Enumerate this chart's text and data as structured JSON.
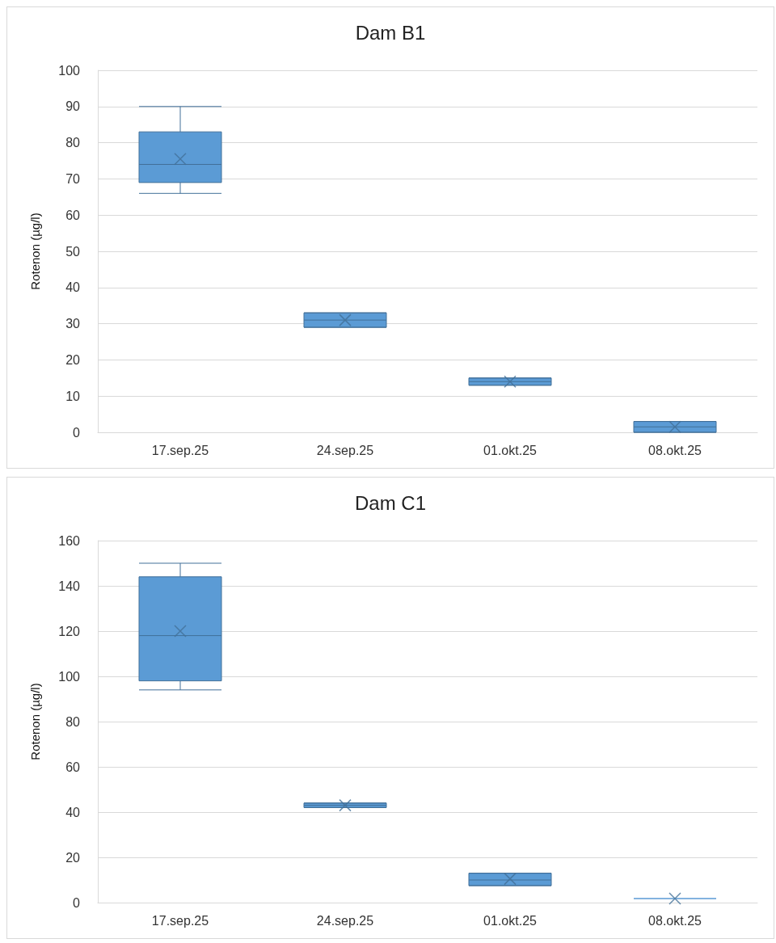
{
  "chart_data": [
    {
      "type": "box",
      "title": "Dam B1",
      "ylabel": "Rotenon (µg/l)",
      "categories": [
        "17.sep.25",
        "24.sep.25",
        "01.okt.25",
        "08.okt.25"
      ],
      "color": "#5b9bd5",
      "ylim": [
        0,
        100
      ],
      "yticks": [
        0,
        10,
        20,
        30,
        40,
        50,
        60,
        70,
        80,
        90,
        100
      ],
      "grid": "y",
      "marker": "cross",
      "boxes": [
        {
          "low": 66,
          "q1": 69,
          "median": 74,
          "q3": 83,
          "high": 90,
          "mean": 75.5
        },
        {
          "low": 29,
          "q1": 29,
          "median": 31,
          "q3": 33,
          "high": 33,
          "mean": 31
        },
        {
          "low": 13,
          "q1": 13,
          "median": 14,
          "q3": 15,
          "high": 15,
          "mean": 14
        },
        {
          "low": 0,
          "q1": 0,
          "median": 1.5,
          "q3": 3,
          "high": 3,
          "mean": 1.5
        }
      ]
    },
    {
      "type": "box",
      "title": "Dam C1",
      "ylabel": "Rotenon (µg/l)",
      "categories": [
        "17.sep.25",
        "24.sep.25",
        "01.okt.25",
        "08.okt.25"
      ],
      "color": "#5b9bd5",
      "ylim": [
        0,
        160
      ],
      "yticks": [
        0,
        20,
        40,
        60,
        80,
        100,
        120,
        140,
        160
      ],
      "grid": "y",
      "marker": "cross",
      "boxes": [
        {
          "low": 94,
          "q1": 98,
          "median": 118,
          "q3": 144,
          "high": 150,
          "mean": 120
        },
        {
          "low": 42,
          "q1": 42,
          "median": 43,
          "q3": 44,
          "high": 44,
          "mean": 43
        },
        {
          "low": 7.5,
          "q1": 7.5,
          "median": 10,
          "q3": 13,
          "high": 13,
          "mean": 10.5
        },
        {
          "low": 1.8,
          "q1": 1.8,
          "median": 1.8,
          "q3": 1.8,
          "high": 1.8,
          "mean": 1.8
        }
      ]
    }
  ]
}
